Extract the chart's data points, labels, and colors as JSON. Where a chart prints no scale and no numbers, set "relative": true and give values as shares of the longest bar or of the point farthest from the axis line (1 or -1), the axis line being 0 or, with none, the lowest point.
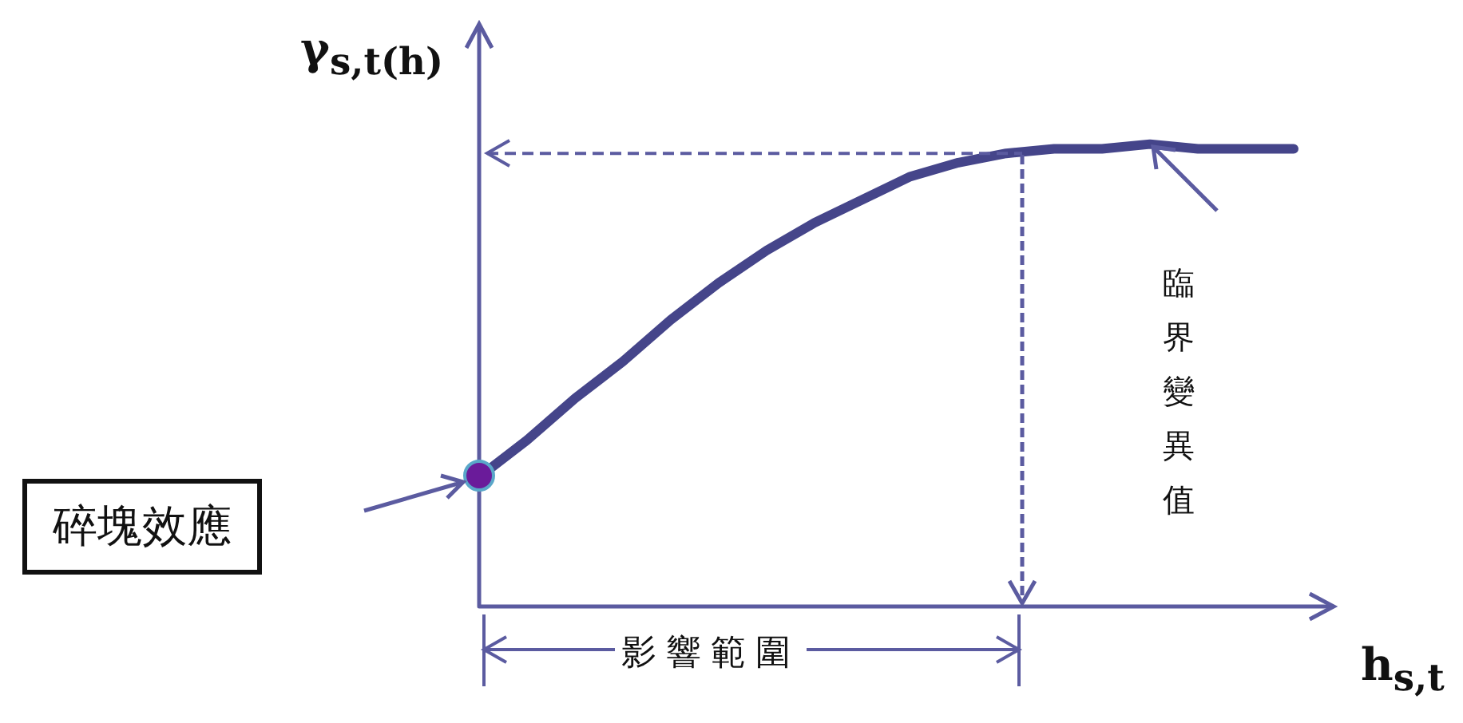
{
  "chart_data": {
    "type": "line",
    "relative": true,
    "xlabel": "h$_{s,t}$",
    "ylabel": "γ$_{s,t(h)}$",
    "categories": [
      null,
      null,
      null,
      null,
      null,
      null,
      null,
      null,
      null,
      null,
      null,
      null,
      null,
      null,
      null,
      null,
      null,
      null
    ],
    "series": [
      {
        "type": "line",
        "color": "#45458a",
        "values": [
          0.28,
          0.36,
          0.45,
          0.53,
          0.62,
          0.7,
          0.77,
          0.83,
          0.88,
          0.93,
          0.96,
          0.98,
          0.99,
          0.99,
          1,
          0.99,
          0.99,
          0.99
        ]
      }
    ],
    "ref_lines": [
      {
        "axis": "y",
        "value": 0.98,
        "line_style": "dashed",
        "color": "#5b5ba0"
      }
    ],
    "annotations": [
      "碎塊效應",
      "臨界變異值",
      "影響範圍"
    ],
    "legend": false,
    "grid": false
  }
}
